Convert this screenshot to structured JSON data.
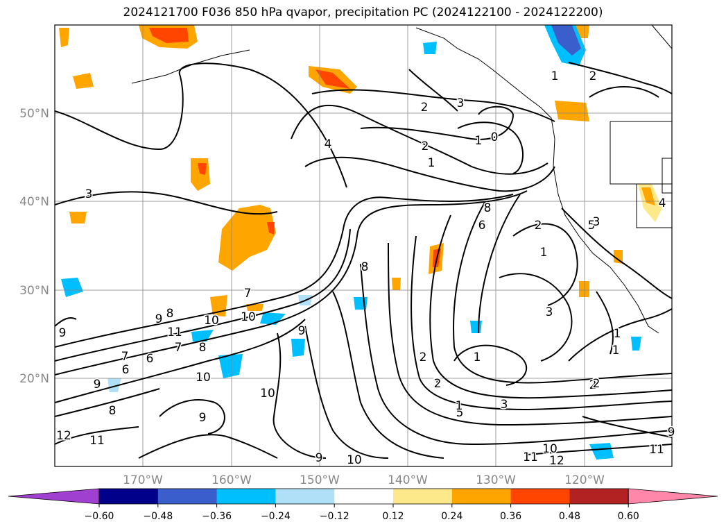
{
  "title": "2024121700 F036 850 hPa qvapor, precipitation PC (2024122100 - 2024122200)",
  "lat_labels": [
    "50°N",
    "40°N",
    "30°N",
    "20°N"
  ],
  "lon_labels": [
    "170°W",
    "160°W",
    "150°W",
    "140°W",
    "130°W",
    "120°W"
  ],
  "colorbar": {
    "colors": [
      "#a040d0",
      "#00008b",
      "#3a5fcd",
      "#00bfff",
      "#b0e0f8",
      "#ffffff",
      "#fde98a",
      "#ffa500",
      "#ff4500",
      "#b22222",
      "#ff88aa"
    ],
    "tick_labels": [
      "−0.60",
      "−0.48",
      "−0.36",
      "−0.24",
      "−0.12",
      "0.12",
      "0.24",
      "0.36",
      "0.48",
      "0.60"
    ]
  },
  "contour_labels": [
    "3",
    "2",
    "1",
    "0",
    "2",
    "1",
    "4",
    "3",
    "2",
    "1",
    "1",
    "2",
    "8",
    "6",
    "5",
    "2",
    "1",
    "8",
    "1",
    "3",
    "7",
    "9",
    "8",
    "10",
    "10",
    "9",
    "8",
    "11",
    "6",
    "7",
    "7",
    "6",
    "9",
    "10",
    "9",
    "10",
    "8",
    "9",
    "1",
    "2",
    "3",
    "2",
    "5",
    "3",
    "1",
    "11",
    "12",
    "10",
    "11",
    "12",
    "9",
    "10",
    "11",
    "9",
    "4",
    "2",
    "1"
  ]
}
